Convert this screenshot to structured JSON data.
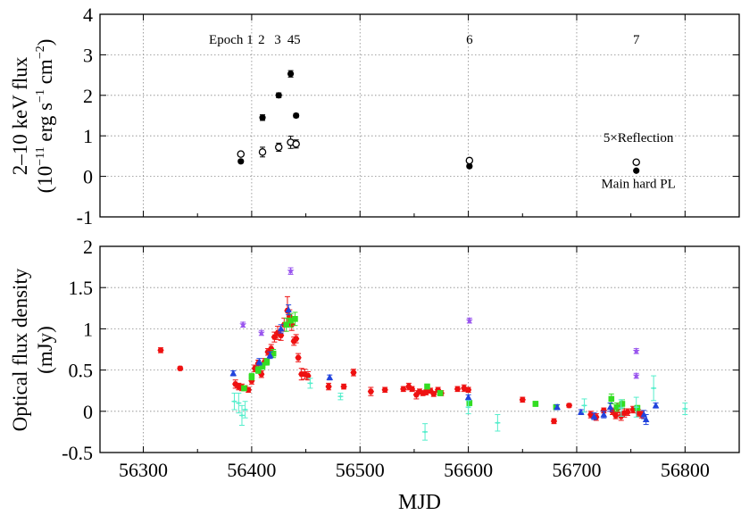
{
  "chart_data": [
    {
      "type": "scatter",
      "panel": "top",
      "xlabel": "MJD",
      "ylabel_line1": "2–10 keV flux",
      "ylabel_line2": "(10",
      "ylabel_line2_sup": "−11",
      "ylabel_line2_mid": " erg s",
      "ylabel_line2_sup2": "−1",
      "ylabel_line2_mid2": " cm",
      "ylabel_line2_sup3": "−2",
      "ylabel_line2_end": ")",
      "xlim": [
        56260,
        56850
      ],
      "ylim": [
        -1,
        4
      ],
      "x_ticks": [
        56300,
        56400,
        56500,
        56600,
        56700,
        56800
      ],
      "y_ticks": [
        -1,
        0,
        1,
        2,
        3,
        4
      ],
      "y_tick_labels": [
        "-1",
        "0",
        "1",
        "2",
        "3",
        "4"
      ],
      "epochs": [
        {
          "label": "Epoch 1",
          "x": 56381
        },
        {
          "label": "2",
          "x": 56409
        },
        {
          "label": "3",
          "x": 56424
        },
        {
          "label": "4",
          "x": 56436
        },
        {
          "label": "5",
          "x": 56442
        },
        {
          "label": "6",
          "x": 56601
        },
        {
          "label": "7",
          "x": 56755
        }
      ],
      "series": [
        {
          "name": "Main hard PL",
          "marker": "filled-circle",
          "color": "#000000",
          "x": [
            56390,
            56410,
            56425,
            56436,
            56441,
            56601,
            56755
          ],
          "y": [
            0.37,
            1.45,
            2.0,
            2.53,
            1.5,
            0.25,
            0.14
          ],
          "err": [
            0.04,
            0.07,
            0.06,
            0.08,
            0.05,
            0.04,
            0.03
          ]
        },
        {
          "name": "5×Reflection",
          "marker": "open-circle",
          "color": "#000000",
          "x": [
            56390,
            56410,
            56425,
            56436,
            56441,
            56601,
            56755
          ],
          "y": [
            0.55,
            0.6,
            0.72,
            0.84,
            0.8,
            0.39,
            0.35
          ],
          "err": [
            0.05,
            0.12,
            0.1,
            0.15,
            0.1,
            0.06,
            0.05
          ]
        }
      ],
      "annotations": [
        {
          "text": "5×Reflection",
          "x": 56757,
          "y": 0.85
        },
        {
          "text": "Main hard PL",
          "x": 56757,
          "y": -0.28
        }
      ]
    },
    {
      "type": "scatter",
      "panel": "bottom",
      "xlabel": "MJD",
      "ylabel_line1": "Optical flux density",
      "ylabel_line2": "(mJy)",
      "xlim": [
        56260,
        56850
      ],
      "ylim": [
        -0.5,
        2
      ],
      "x_ticks": [
        56300,
        56400,
        56500,
        56600,
        56700,
        56800
      ],
      "x_tick_labels": [
        "56300",
        "56400",
        "56500",
        "56600",
        "56700",
        "56800"
      ],
      "y_ticks": [
        -0.5,
        0,
        0.5,
        1,
        1.5,
        2
      ],
      "y_tick_labels": [
        "-0.5",
        "0",
        "0.5",
        "1",
        "1.5",
        "2"
      ],
      "series": [
        {
          "name": "red",
          "marker": "hexagon",
          "color": "#ee1111",
          "x": [
            56316,
            56334,
            56385,
            56388,
            56391,
            56394,
            56397,
            56400,
            56403,
            56406,
            56409,
            56412,
            56415,
            56418,
            56421,
            56424,
            56427,
            56430,
            56433,
            56435,
            56437,
            56439,
            56441,
            56443,
            56446,
            56449,
            56452,
            56471,
            56485,
            56494,
            56510,
            56523,
            56540,
            56545,
            56548,
            56552,
            56555,
            56558,
            56561,
            56565,
            56568,
            56572,
            56575,
            56590,
            56596,
            56600,
            56650,
            56679,
            56693,
            56713,
            56718,
            56725,
            56733,
            56736,
            56738,
            56741,
            56744,
            56747,
            56752,
            56757,
            56760
          ],
          "y": [
            0.74,
            0.52,
            0.33,
            0.3,
            0.29,
            0.28,
            0.26,
            0.37,
            0.52,
            0.58,
            0.45,
            0.6,
            0.72,
            0.76,
            0.9,
            0.95,
            0.92,
            1.05,
            1.22,
            1.15,
            1.05,
            0.85,
            0.88,
            0.65,
            0.45,
            0.45,
            0.43,
            0.3,
            0.3,
            0.47,
            0.24,
            0.26,
            0.27,
            0.3,
            0.27,
            0.2,
            0.24,
            0.22,
            0.23,
            0.25,
            0.21,
            0.26,
            0.22,
            0.27,
            0.28,
            0.26,
            0.14,
            -0.12,
            0.07,
            -0.04,
            -0.07,
            0.01,
            0.0,
            -0.05,
            0.04,
            -0.06,
            -0.02,
            -0.01,
            0.02,
            -0.02,
            -0.04
          ],
          "err": [
            0.03,
            0.02,
            0.05,
            0.04,
            0.04,
            0.03,
            0.03,
            0.04,
            0.04,
            0.04,
            0.04,
            0.04,
            0.04,
            0.05,
            0.06,
            0.08,
            0.06,
            0.08,
            0.17,
            0.08,
            0.07,
            0.05,
            0.05,
            0.05,
            0.07,
            0.06,
            0.05,
            0.04,
            0.03,
            0.04,
            0.05,
            0.03,
            0.03,
            0.04,
            0.03,
            0.05,
            0.03,
            0.03,
            0.03,
            0.03,
            0.03,
            0.03,
            0.03,
            0.03,
            0.04,
            0.03,
            0.03,
            0.03,
            0.02,
            0.04,
            0.04,
            0.03,
            0.04,
            0.04,
            0.06,
            0.05,
            0.05,
            0.04,
            0.04,
            0.04,
            0.04
          ]
        },
        {
          "name": "green",
          "marker": "square",
          "color": "#33dd22",
          "x": [
            56393,
            56400,
            56406,
            56410,
            56414,
            56420,
            56432,
            56436,
            56440,
            56562,
            56574,
            56601,
            56662,
            56681,
            56732,
            56737,
            56742,
            56756
          ],
          "y": [
            0.28,
            0.42,
            0.5,
            0.55,
            0.6,
            0.7,
            1.05,
            1.1,
            1.12,
            0.3,
            0.22,
            0.1,
            0.09,
            0.05,
            0.15,
            0.05,
            0.09,
            0.04
          ],
          "err": [
            0.03,
            0.04,
            0.04,
            0.04,
            0.04,
            0.05,
            0.08,
            0.08,
            0.08,
            0.03,
            0.03,
            0.03,
            0.03,
            0.03,
            0.06,
            0.05,
            0.05,
            0.03
          ]
        },
        {
          "name": "blue",
          "marker": "triangle",
          "color": "#2244dd",
          "x": [
            56383,
            56407,
            56417,
            56427,
            56434,
            56472,
            56600,
            56682,
            56704,
            56716,
            56725,
            56731,
            56762,
            56764,
            56773
          ],
          "y": [
            0.46,
            0.6,
            0.68,
            1.0,
            1.23,
            0.41,
            0.17,
            0.05,
            -0.01,
            -0.06,
            -0.04,
            0.05,
            -0.04,
            -0.1,
            0.07
          ],
          "err": [
            0.03,
            0.04,
            0.04,
            0.05,
            0.06,
            0.03,
            0.03,
            0.03,
            0.03,
            0.04,
            0.04,
            0.05,
            0.05,
            0.06,
            0.03
          ]
        },
        {
          "name": "violet",
          "marker": "star",
          "color": "#9955ee",
          "x": [
            56392,
            56409,
            56436,
            56601,
            56755,
            56755
          ],
          "y": [
            1.05,
            0.95,
            1.7,
            1.1,
            0.73,
            0.43
          ],
          "err": [
            0.03,
            0.03,
            0.04,
            0.03,
            0.03,
            0.03
          ]
        },
        {
          "name": "cyan",
          "marker": "cross",
          "color": "#55eecc",
          "x": [
            56384,
            56388,
            56391,
            56394,
            56454,
            56482,
            56560,
            56600,
            56627,
            56707,
            56741,
            56755,
            56771,
            56800
          ],
          "y": [
            0.12,
            0.1,
            -0.05,
            0.02,
            0.34,
            0.18,
            -0.25,
            0.05,
            -0.14,
            0.07,
            0.04,
            0.05,
            0.28,
            0.03
          ],
          "err": [
            0.1,
            0.12,
            0.12,
            0.1,
            0.06,
            0.04,
            0.1,
            0.08,
            0.1,
            0.08,
            0.1,
            0.12,
            0.15,
            0.07
          ]
        }
      ]
    }
  ]
}
